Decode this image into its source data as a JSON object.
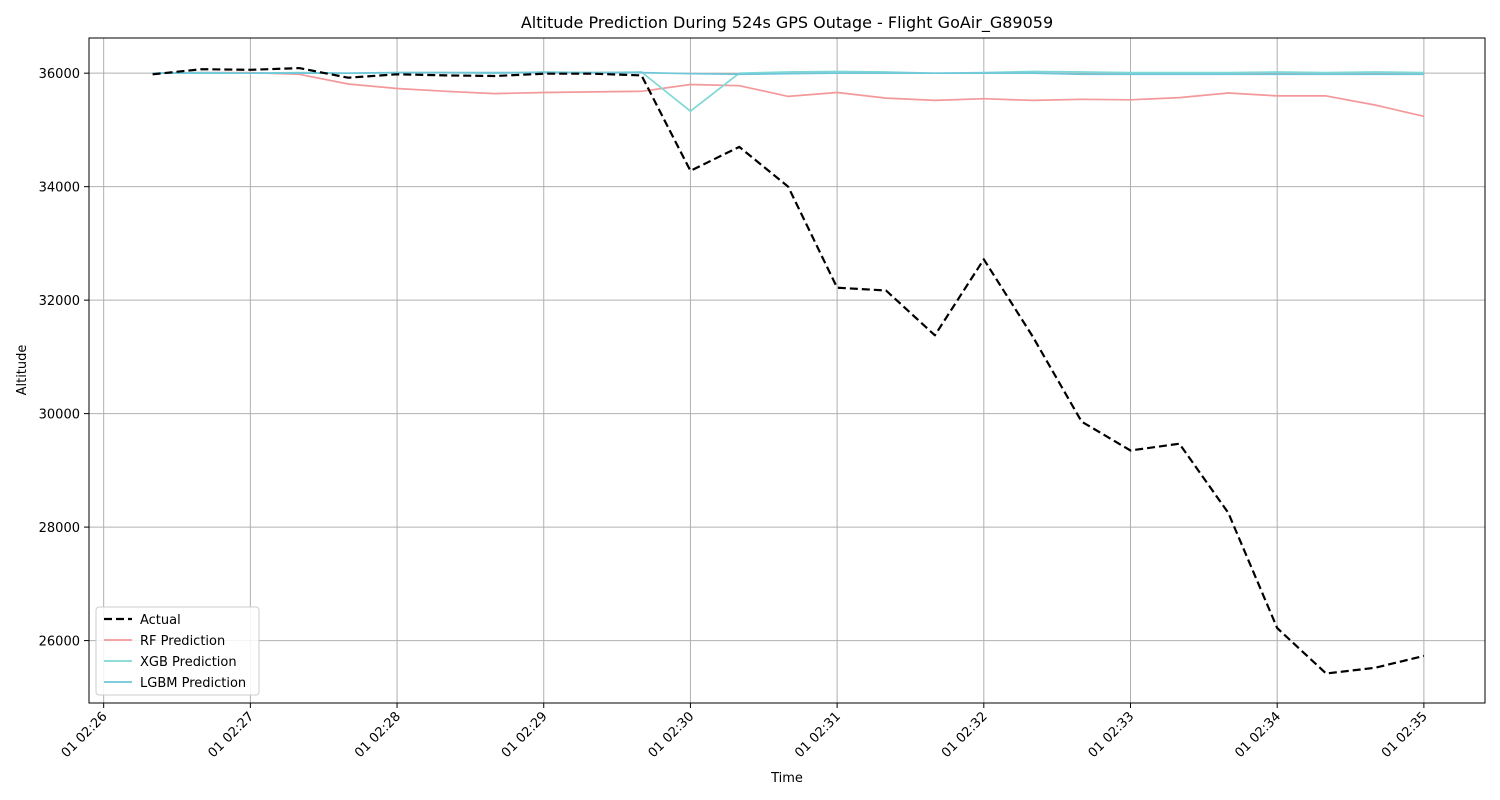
{
  "chart_data": {
    "type": "line",
    "title": "Altitude Prediction During 524s GPS Outage - Flight GoAir_G89059",
    "xlabel": "Time",
    "ylabel": "Altitude",
    "x_tick_labels": [
      "01 02:26",
      "01 02:27",
      "01 02:28",
      "01 02:29",
      "01 02:30",
      "01 02:31",
      "01 02:32",
      "01 02:33",
      "01 02:34",
      "01 02:35"
    ],
    "x_ticks_seconds": [
      0,
      60,
      120,
      180,
      240,
      300,
      360,
      420,
      480,
      540
    ],
    "xlim_seconds": [
      -6,
      565
    ],
    "y_ticks": [
      26000,
      28000,
      30000,
      32000,
      34000,
      36000
    ],
    "ylim": [
      24900,
      36620
    ],
    "grid": true,
    "legend_position": "lower-left",
    "x_seconds": [
      20,
      40,
      60,
      80,
      100,
      120,
      140,
      160,
      180,
      200,
      220,
      240,
      260,
      280,
      300,
      320,
      340,
      360,
      380,
      400,
      420,
      440,
      460,
      480,
      500,
      520,
      540
    ],
    "series": [
      {
        "name": "Actual",
        "color": "#000000",
        "style": "dashed",
        "values": [
          35980,
          36070,
          36060,
          36090,
          35920,
          35980,
          35960,
          35950,
          35990,
          35990,
          35960,
          34280,
          34700,
          34000,
          32220,
          32170,
          31380,
          32720,
          31360,
          29860,
          29350,
          29470,
          28250,
          26220,
          25420,
          25520,
          25730
        ]
      },
      {
        "name": "RF Prediction",
        "color": "#f4999b",
        "style": "solid",
        "values": [
          36000,
          36010,
          36010,
          35980,
          35810,
          35730,
          35680,
          35640,
          35660,
          35670,
          35680,
          35800,
          35780,
          35590,
          35660,
          35560,
          35520,
          35550,
          35520,
          35540,
          35530,
          35570,
          35650,
          35600,
          35600,
          35440,
          35240
        ]
      },
      {
        "name": "XGB Prediction",
        "color": "#7fd8d6",
        "style": "solid",
        "values": [
          36000,
          36010,
          36000,
          36010,
          36000,
          36010,
          36010,
          36000,
          36020,
          36010,
          36020,
          35330,
          36000,
          36020,
          36030,
          36020,
          36000,
          36010,
          36030,
          36020,
          36010,
          36010,
          36010,
          36020,
          36010,
          36020,
          36010
        ]
      },
      {
        "name": "LGBM Prediction",
        "color": "#6fc6d8",
        "style": "solid",
        "values": [
          36000,
          36000,
          36000,
          36000,
          36000,
          36010,
          36010,
          36010,
          36010,
          36010,
          36010,
          35990,
          35980,
          35990,
          36000,
          36000,
          36000,
          36000,
          36000,
          35980,
          35980,
          35980,
          35980,
          35980,
          35980,
          35980,
          35980
        ]
      }
    ]
  }
}
